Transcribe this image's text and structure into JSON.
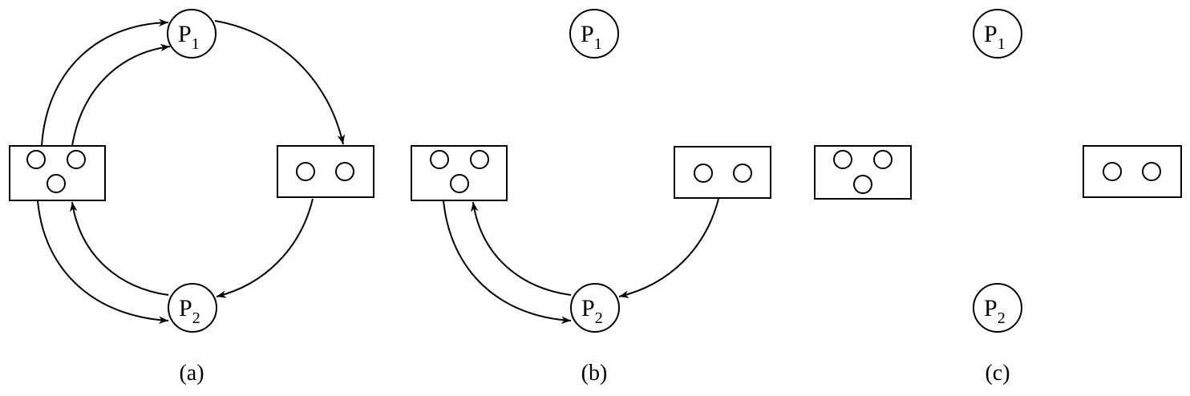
{
  "panels": [
    {
      "caption": "(a)",
      "p1": {
        "letter": "P",
        "sub": "1"
      },
      "p2": {
        "letter": "P",
        "sub": "2"
      }
    },
    {
      "caption": "(b)",
      "p1": {
        "letter": "P",
        "sub": "1"
      },
      "p2": {
        "letter": "P",
        "sub": "2"
      }
    },
    {
      "caption": "(c)",
      "p1": {
        "letter": "P",
        "sub": "1"
      },
      "p2": {
        "letter": "P",
        "sub": "2"
      }
    }
  ]
}
